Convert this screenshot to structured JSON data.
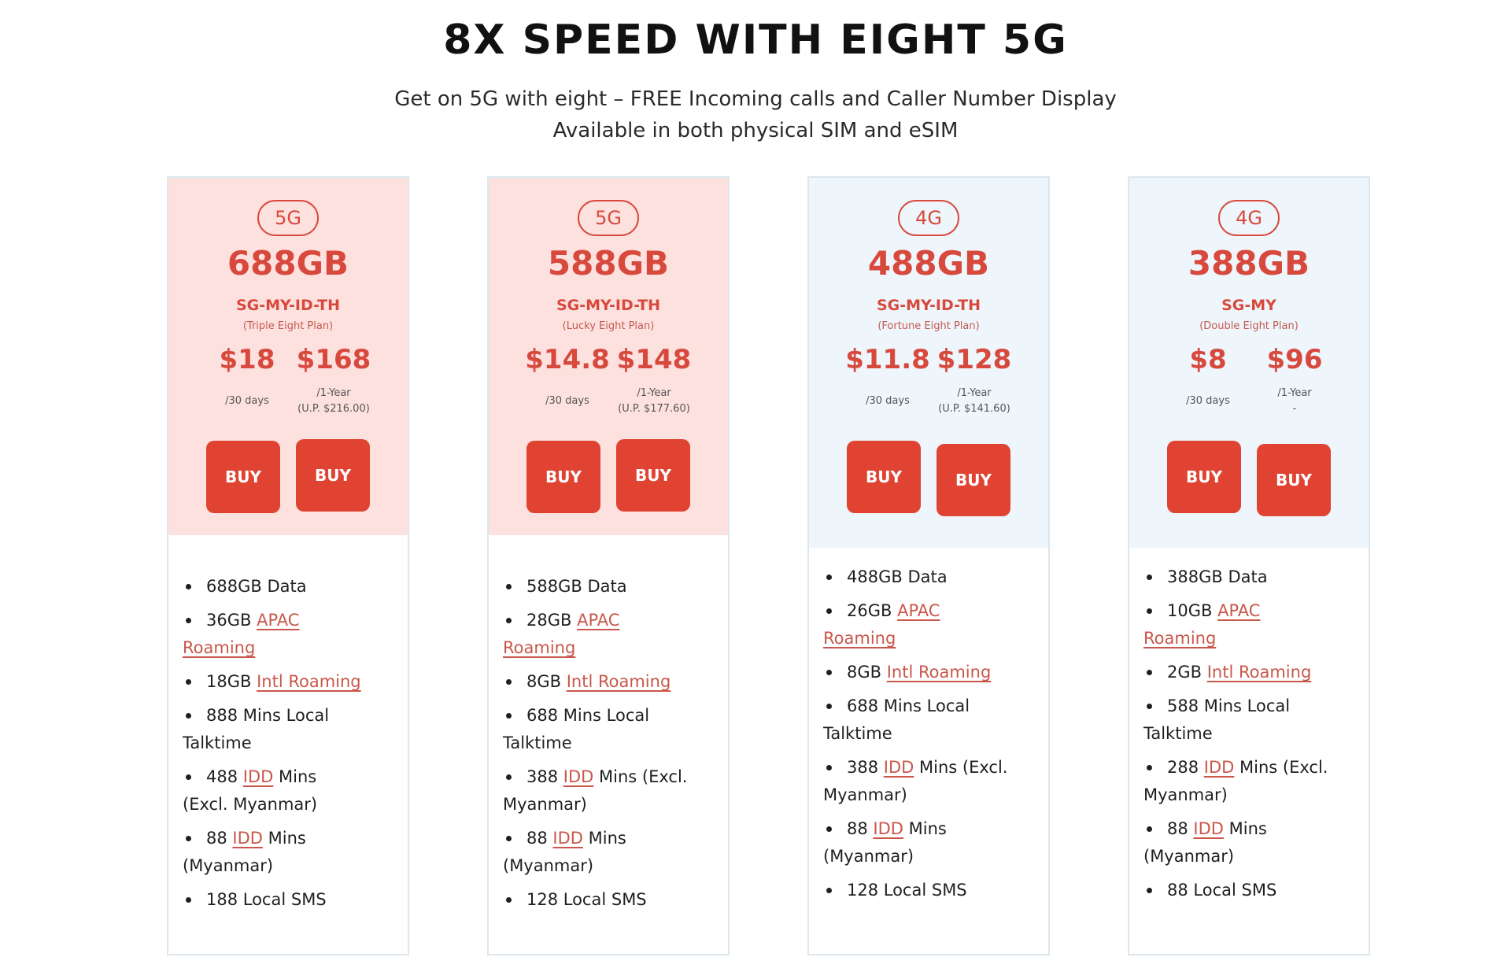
{
  "header": {
    "title": "8X SPEED WITH EIGHT 5G",
    "line1": "Get on 5G with eight – FREE Incoming calls and Caller Number Display",
    "line2": "Available in both physical SIM and eSIM"
  },
  "buy_label": "BUY",
  "colors": {
    "accent": "#d8493d",
    "button": "#e04332",
    "pink_panel": "#fde1df",
    "blue_panel": "#eef5fb"
  },
  "plans": [
    {
      "badge": "5G",
      "data_amount": "688GB",
      "region": "SG-MY-ID-TH",
      "plan_name": "(Triple Eight Plan)",
      "monthly_price": "$18",
      "monthly_period": "/30 days",
      "yearly_price": "$168",
      "yearly_period": "/1-Year",
      "yearly_note": "(U.P. $216.00)",
      "data": "688GB Data",
      "apac_amount": "36GB",
      "apac_label": "APAC",
      "apac_label2": "Roaming",
      "intl_amount": "18GB",
      "intl_label": "Intl Roaming",
      "local_mins": "888 Mins Local",
      "local_mins2": "Talktime",
      "idd_a_num": "488",
      "idd": "IDD",
      "idd_a_rest": "Mins",
      "idd_a_rest2": "(Excl. Myanmar)",
      "idd_b_num": "88",
      "idd_b_rest": "Mins",
      "idd_b_rest2": "(Myanmar)",
      "sms": "188 Local SMS"
    },
    {
      "badge": "5G",
      "data_amount": "588GB",
      "region": "SG-MY-ID-TH",
      "plan_name": "(Lucky Eight Plan)",
      "monthly_price": "$14.8",
      "monthly_period": "/30 days",
      "yearly_price": "$148",
      "yearly_period": "/1-Year",
      "yearly_note": "(U.P. $177.60)",
      "data": "588GB Data",
      "apac_amount": "28GB",
      "apac_label": "APAC",
      "apac_label2": "Roaming",
      "intl_amount": "8GB",
      "intl_label": "Intl Roaming",
      "local_mins": "688 Mins Local",
      "local_mins2": "Talktime",
      "idd_a_num": "388",
      "idd": "IDD",
      "idd_a_rest": "Mins (Excl.",
      "idd_a_rest2": "Myanmar)",
      "idd_b_num": "88",
      "idd_b_rest": "Mins",
      "idd_b_rest2": "(Myanmar)",
      "sms": "128 Local SMS"
    },
    {
      "badge": "4G",
      "data_amount": "488GB",
      "region": "SG-MY-ID-TH",
      "plan_name": "(Fortune Eight Plan)",
      "monthly_price": "$11.8",
      "monthly_period": "/30 days",
      "yearly_price": "$128",
      "yearly_period": "/1-Year",
      "yearly_note": "(U.P. $141.60)",
      "data": "488GB Data",
      "apac_amount": "26GB",
      "apac_label": "APAC",
      "apac_label2": "Roaming",
      "intl_amount": "8GB",
      "intl_label": "Intl Roaming",
      "local_mins": "688 Mins Local",
      "local_mins2": "Talktime",
      "idd_a_num": "388",
      "idd": "IDD",
      "idd_a_rest": "Mins (Excl.",
      "idd_a_rest2": "Myanmar)",
      "idd_b_num": "88",
      "idd_b_rest": "Mins",
      "idd_b_rest2": "(Myanmar)",
      "sms": "128 Local SMS"
    },
    {
      "badge": "4G",
      "data_amount": "388GB",
      "region": "SG-MY",
      "plan_name": "(Double Eight Plan)",
      "monthly_price": "$8",
      "monthly_period": "/30 days",
      "yearly_price": "$96",
      "yearly_period": "/1-Year",
      "yearly_note": "-",
      "data": "388GB Data",
      "apac_amount": "10GB",
      "apac_label": "APAC",
      "apac_label2": "Roaming",
      "intl_amount": "2GB",
      "intl_label": "Intl Roaming",
      "local_mins": "588 Mins Local",
      "local_mins2": "Talktime",
      "idd_a_num": "288",
      "idd": "IDD",
      "idd_a_rest": "Mins (Excl.",
      "idd_a_rest2": "Myanmar)",
      "idd_b_num": "88",
      "idd_b_rest": "Mins",
      "idd_b_rest2": "(Myanmar)",
      "sms": "88 Local SMS"
    }
  ]
}
